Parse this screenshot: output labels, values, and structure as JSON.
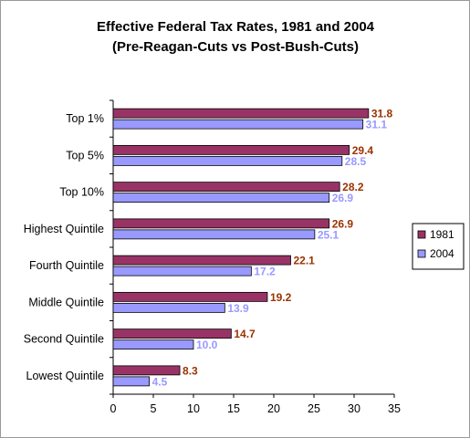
{
  "chart_data": {
    "type": "bar",
    "orientation": "horizontal",
    "title_line1": "Effective Federal Tax Rates,  1981 and 2004",
    "title_line2": "(Pre-Reagan-Cuts vs Post-Bush-Cuts)",
    "categories": [
      "Top 1%",
      "Top 5%",
      "Top 10%",
      "Highest Quintile",
      "Fourth Quintile",
      "Middle Quintile",
      "Second Quintile",
      "Lowest Quintile"
    ],
    "series": [
      {
        "name": "1981",
        "values": [
          31.8,
          29.4,
          28.2,
          26.9,
          22.1,
          19.2,
          14.7,
          8.3
        ],
        "value_labels": [
          "31.8",
          "29.4",
          "28.2",
          "26.9",
          "22.1",
          "19.2",
          "14.7",
          "8.3"
        ],
        "color": "#993366",
        "label_color": "#993300"
      },
      {
        "name": "2004",
        "values": [
          31.1,
          28.5,
          26.9,
          25.1,
          17.2,
          13.9,
          10.0,
          4.5
        ],
        "value_labels": [
          "31.1",
          "28.5",
          "26.9",
          "25.1",
          "17.2",
          "13.9",
          "10.0",
          "4.5"
        ],
        "color": "#9999FF",
        "label_color": "#9999FF"
      }
    ],
    "x_ticks": [
      "0",
      "5",
      "10",
      "15",
      "20",
      "25",
      "30",
      "35"
    ],
    "xlim": [
      0,
      35
    ],
    "grid": false,
    "legend_position": "right"
  }
}
